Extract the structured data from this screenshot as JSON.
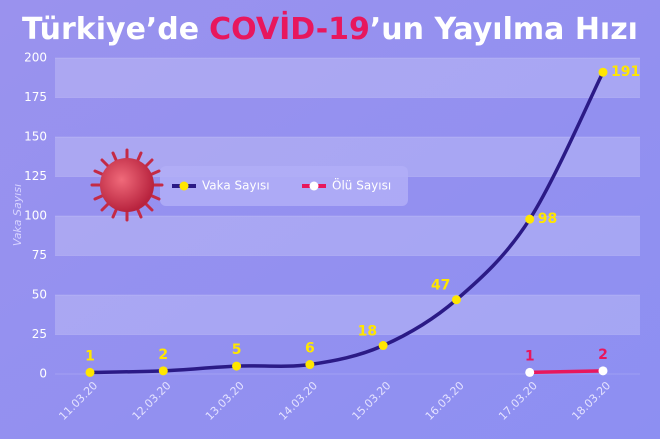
{
  "chart_data": {
    "type": "line",
    "title": [
      "Türkiye’de",
      "COVİD-19",
      "’un Yayılma Hızı"
    ],
    "y_label": "Vaka Sayısı",
    "categories": [
      "11.03.20",
      "12.03.20",
      "13.03.20",
      "14.03.20",
      "15.03.20",
      "16.03.20",
      "17.03.20",
      "18.03.20"
    ],
    "series": [
      {
        "name": "Vaka Sayısı",
        "color": "#2b1a86",
        "marker_color": "#ffe600",
        "label_color": "#ffe600",
        "values": [
          1,
          2,
          5,
          6,
          18,
          47,
          98,
          191
        ]
      },
      {
        "name": "Ölü Sayısı",
        "color": "#e8175d",
        "marker_color": "#ffffff",
        "label_color": "#e8175d",
        "values": [
          null,
          null,
          null,
          null,
          null,
          null,
          1,
          2
        ]
      }
    ],
    "ylim": [
      0,
      200
    ],
    "yticks": [
      0,
      25,
      50,
      75,
      100,
      125,
      150,
      175,
      200
    ],
    "grid": true
  }
}
